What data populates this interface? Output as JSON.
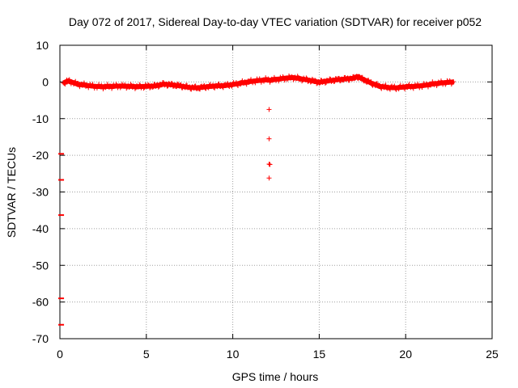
{
  "chart_data": {
    "type": "scatter",
    "title": "Day 072 of 2017, Sidereal Day-to-day VTEC variation (SDTVAR) for receiver p052",
    "xlabel": "GPS time / hours",
    "ylabel": "SDTVAR / TECUs",
    "xlim": [
      0,
      25
    ],
    "ylim": [
      -70,
      10
    ],
    "xticks": [
      0,
      5,
      10,
      15,
      20,
      25
    ],
    "yticks": [
      10,
      0,
      -10,
      -20,
      -30,
      -40,
      -50,
      -60,
      -70
    ],
    "grid": true,
    "colors": {
      "series": "#ff0000",
      "grid": "#a0a0a0",
      "axis": "#000000"
    },
    "series": [
      {
        "name": "SDTVAR",
        "marker": "plus",
        "baseline": [
          [
            0.2,
            -0.3
          ],
          [
            0.5,
            0.3
          ],
          [
            1.0,
            -0.6
          ],
          [
            1.5,
            -0.9
          ],
          [
            2.0,
            -1.2
          ],
          [
            2.5,
            -1.3
          ],
          [
            3.0,
            -1.2
          ],
          [
            3.5,
            -1.1
          ],
          [
            4.0,
            -1.2
          ],
          [
            4.5,
            -1.3
          ],
          [
            5.0,
            -1.2
          ],
          [
            5.5,
            -1.1
          ],
          [
            6.0,
            -0.6
          ],
          [
            6.5,
            -0.8
          ],
          [
            7.0,
            -1.1
          ],
          [
            7.5,
            -1.5
          ],
          [
            8.0,
            -1.6
          ],
          [
            8.5,
            -1.3
          ],
          [
            9.0,
            -1.1
          ],
          [
            9.5,
            -1.0
          ],
          [
            10.0,
            -0.7
          ],
          [
            10.5,
            -0.3
          ],
          [
            11.0,
            0.1
          ],
          [
            11.5,
            0.4
          ],
          [
            12.0,
            0.6
          ],
          [
            12.2,
            0.5
          ],
          [
            12.5,
            0.7
          ],
          [
            13.0,
            1.0
          ],
          [
            13.5,
            1.2
          ],
          [
            14.0,
            0.8
          ],
          [
            14.5,
            0.4
          ],
          [
            15.0,
            -0.1
          ],
          [
            15.5,
            0.3
          ],
          [
            16.0,
            0.6
          ],
          [
            16.5,
            0.8
          ],
          [
            17.0,
            1.0
          ],
          [
            17.2,
            1.5
          ],
          [
            17.5,
            0.8
          ],
          [
            18.0,
            -0.3
          ],
          [
            18.5,
            -1.2
          ],
          [
            19.0,
            -1.5
          ],
          [
            19.5,
            -1.6
          ],
          [
            20.0,
            -1.3
          ],
          [
            20.5,
            -1.2
          ],
          [
            21.0,
            -1.0
          ],
          [
            21.5,
            -0.6
          ],
          [
            22.0,
            -0.3
          ],
          [
            22.5,
            -0.1
          ],
          [
            22.8,
            0.0
          ]
        ],
        "outliers": [
          [
            12.1,
            -7.5
          ],
          [
            12.1,
            -15.5
          ],
          [
            12.1,
            -22.4
          ],
          [
            12.15,
            -22.5
          ],
          [
            12.1,
            -26.2
          ],
          [
            0.05,
            -19.6
          ],
          [
            0.05,
            -26.7
          ],
          [
            0.05,
            -36.3
          ],
          [
            0.05,
            -59.0
          ],
          [
            0.05,
            -66.2
          ]
        ]
      }
    ]
  }
}
